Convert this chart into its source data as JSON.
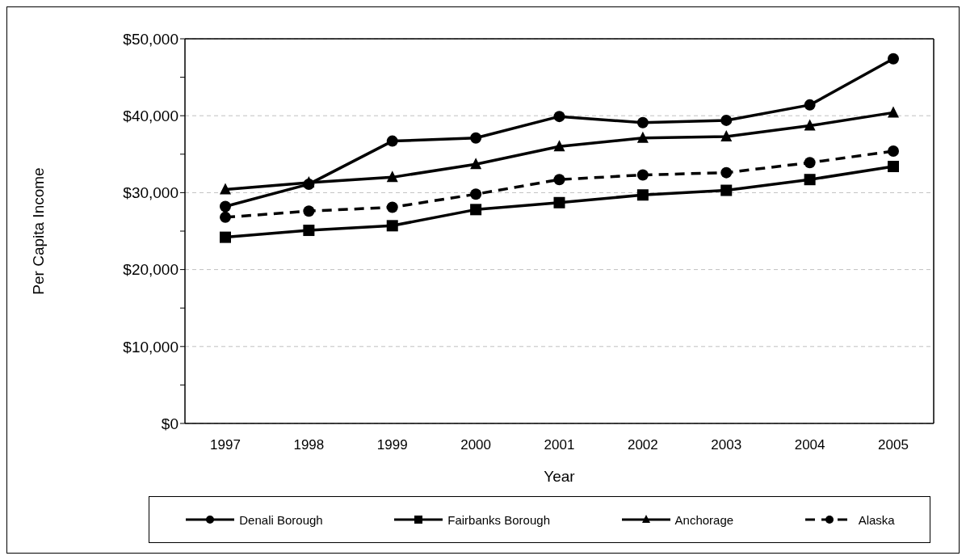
{
  "chart_data": {
    "type": "line",
    "xlabel": "Year",
    "ylabel": "Per Capita Income",
    "categories": [
      "1997",
      "1998",
      "1999",
      "2000",
      "2001",
      "2002",
      "2003",
      "2004",
      "2005"
    ],
    "series": [
      {
        "name": "Denali Borough",
        "color": "#000000",
        "marker": "circle",
        "line_style": "solid",
        "values": [
          28200,
          31100,
          36700,
          37100,
          39900,
          39100,
          39400,
          41400,
          47400
        ]
      },
      {
        "name": "Fairbanks Borough",
        "color": "#000000",
        "marker": "square",
        "line_style": "solid",
        "values": [
          24200,
          25100,
          25700,
          27800,
          28700,
          29700,
          30300,
          31700,
          33400
        ]
      },
      {
        "name": "Anchorage",
        "color": "#000000",
        "marker": "triangle",
        "line_style": "solid",
        "values": [
          30400,
          31300,
          32000,
          33700,
          36000,
          37100,
          37300,
          38700,
          40400
        ]
      },
      {
        "name": "Alaska",
        "color": "#000000",
        "marker": "circle",
        "line_style": "dashed",
        "values": [
          26800,
          27600,
          28100,
          29800,
          31700,
          32300,
          32600,
          33900,
          35400
        ]
      }
    ],
    "ylim": [
      0,
      50000
    ],
    "yticks": [
      {
        "value": 0,
        "label": "$0"
      },
      {
        "value": 5000,
        "label": null
      },
      {
        "value": 10000,
        "label": "$10,000"
      },
      {
        "value": 15000,
        "label": null
      },
      {
        "value": 20000,
        "label": "$20,000"
      },
      {
        "value": 25000,
        "label": null
      },
      {
        "value": 30000,
        "label": "$30,000"
      },
      {
        "value": 35000,
        "label": null
      },
      {
        "value": 40000,
        "label": "$40,000"
      },
      {
        "value": 45000,
        "label": null
      },
      {
        "value": 50000,
        "label": "$50,000"
      }
    ],
    "grid": "y",
    "legend": "bottom"
  }
}
